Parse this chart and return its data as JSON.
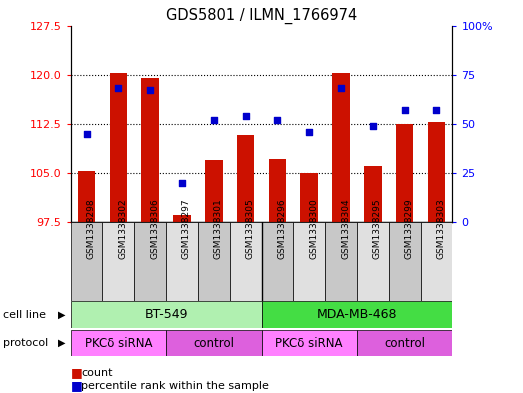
{
  "title": "GDS5801 / ILMN_1766974",
  "samples": [
    "GSM1338298",
    "GSM1338302",
    "GSM1338306",
    "GSM1338297",
    "GSM1338301",
    "GSM1338305",
    "GSM1338296",
    "GSM1338300",
    "GSM1338304",
    "GSM1338295",
    "GSM1338299",
    "GSM1338303"
  ],
  "bar_values": [
    105.3,
    120.2,
    119.5,
    98.5,
    107.0,
    110.8,
    107.2,
    105.0,
    120.2,
    106.0,
    112.5,
    112.7
  ],
  "dot_values": [
    45,
    68,
    67,
    20,
    52,
    54,
    52,
    46,
    68,
    49,
    57,
    57
  ],
  "y_min": 97.5,
  "y_max": 127.5,
  "y_ticks_left": [
    97.5,
    105,
    112.5,
    120,
    127.5
  ],
  "y_ticks_right": [
    0,
    25,
    50,
    75,
    100
  ],
  "cell_line_groups": [
    {
      "label": "BT-549",
      "start": 0,
      "end": 5,
      "color": "#B0F0B0"
    },
    {
      "label": "MDA-MB-468",
      "start": 6,
      "end": 11,
      "color": "#44DD44"
    }
  ],
  "protocol_groups": [
    {
      "label": "PKCδ siRNA",
      "start": 0,
      "end": 2,
      "color": "#FF80FF"
    },
    {
      "label": "control",
      "start": 3,
      "end": 5,
      "color": "#DD60DD"
    },
    {
      "label": "PKCδ siRNA",
      "start": 6,
      "end": 8,
      "color": "#FF80FF"
    },
    {
      "label": "control",
      "start": 9,
      "end": 11,
      "color": "#DD60DD"
    }
  ],
  "bar_color": "#CC1100",
  "dot_color": "#0000CC",
  "bar_base": 97.5,
  "sample_box_color_even": "#C8C8C8",
  "sample_box_color_odd": "#E0E0E0"
}
